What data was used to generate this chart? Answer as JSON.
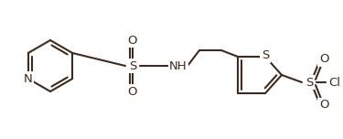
{
  "bg": "#ffffff",
  "bond_color": "#3d2b1f",
  "lw": 1.5,
  "lw2": 1.2,
  "figw": 3.75,
  "figh": 1.52,
  "dpi": 100,
  "atoms": {
    "N_label": "N",
    "S1_label": "S",
    "O_label": "O",
    "NH_label": "NH",
    "S2_label": "S",
    "S3_label": "S",
    "Cl_label": "Cl"
  },
  "font_size": 9.5,
  "font_color": "#3d2b1f"
}
